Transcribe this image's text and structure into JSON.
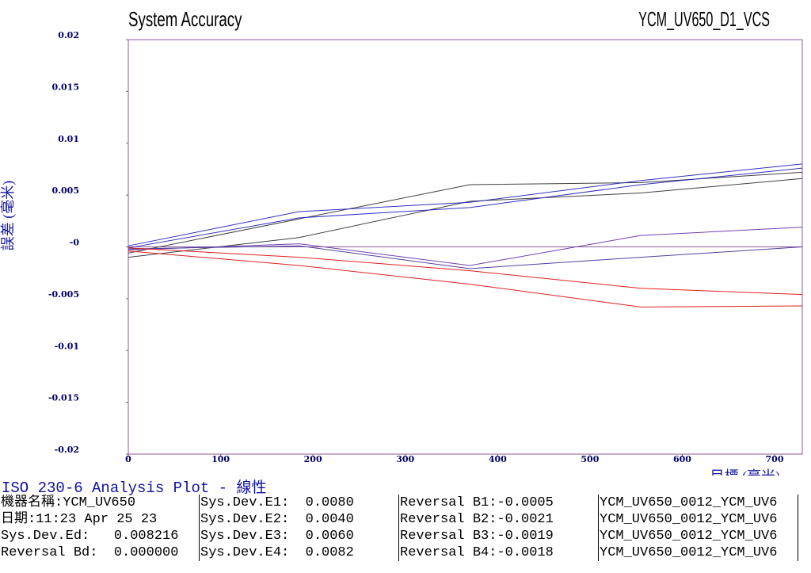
{
  "chart_data": {
    "type": "line",
    "title": "System Accuracy",
    "subtitle": "YCM_UV650_D1_VCS",
    "y_label": "誤差 (毫米)",
    "x_label": "目標 (毫米)",
    "x": [
      0,
      185,
      370,
      555,
      730
    ],
    "xlim": [
      0,
      730
    ],
    "xticks": [
      0,
      100,
      200,
      300,
      400,
      500,
      600,
      700
    ],
    "ylim": [
      -0.02,
      0.02
    ],
    "yticks": [
      0.02,
      0.015,
      0.01,
      0.005,
      {
        "value": 0,
        "label": "-0"
      },
      -0.005,
      -0.01,
      -0.015,
      -0.02
    ],
    "series": [
      {
        "color": "#404040",
        "values": [
          -0.0006,
          0.0027,
          0.006,
          0.0062,
          0.0072
        ]
      },
      {
        "color": "#404040",
        "values": [
          -0.001,
          0.0009,
          0.0044,
          0.0052,
          0.0066
        ]
      },
      {
        "color": "#3030c0",
        "values": [
          0.0001,
          0.0034,
          0.0043,
          0.0064,
          0.008
        ]
      },
      {
        "color": "#3030c0",
        "values": [
          -0.0001,
          0.0028,
          0.0038,
          0.006,
          0.0076
        ]
      },
      {
        "color": "#7040b0",
        "values": [
          -0.0003,
          0.0003,
          -0.0018,
          0.0011,
          0.0019
        ]
      },
      {
        "color": "#5040a0",
        "values": [
          -0.0002,
          0.0001,
          -0.0021,
          -0.001,
          0.0
        ]
      },
      {
        "color": "#e02020",
        "values": [
          -0.0001,
          -0.001,
          -0.0023,
          -0.004,
          -0.0046
        ]
      },
      {
        "color": "#e02020",
        "values": [
          -0.0004,
          -0.0018,
          -0.0036,
          -0.0058,
          -0.0057
        ]
      }
    ]
  },
  "table": {
    "title": "ISO 230-6 Analysis Plot - 線性",
    "rows": [
      [
        "機器名稱:YCM_UV650",
        "Sys.Dev.E1:  0.0080",
        "Reversal B1:-0.0005",
        "YCM_UV650_0012_YCM_UV6"
      ],
      [
        "日期:11:23 Apr 25 23",
        "Sys.Dev.E2:  0.0040",
        "Reversal B2:-0.0021",
        "YCM_UV650_0012_YCM_UV6"
      ],
      [
        "Sys.Dev.Ed:   0.008216",
        "Sys.Dev.E3:  0.0060",
        "Reversal B3:-0.0019",
        "YCM_UV650_0012_YCM_UV6"
      ],
      [
        "Reversal Bd:  0.000000",
        "Sys.Dev.E4:  0.0082",
        "Reversal B4:-0.0018",
        "YCM_UV650_0012_YCM_UV6"
      ]
    ]
  }
}
